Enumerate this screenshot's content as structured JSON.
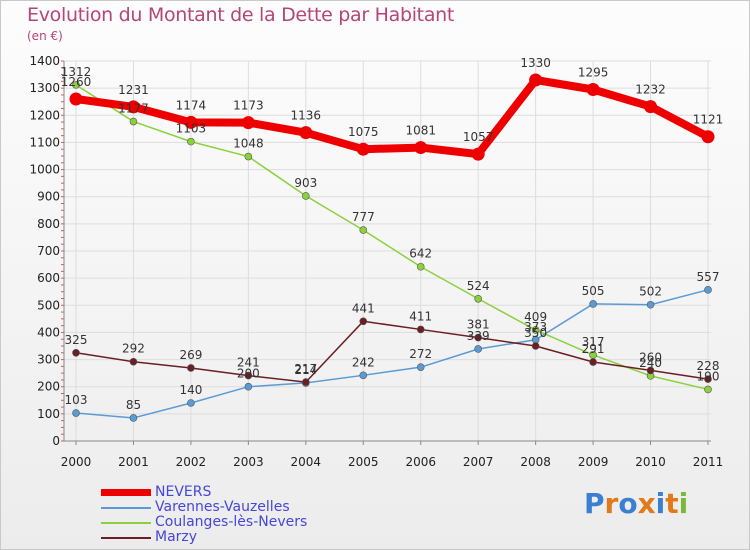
{
  "title": "Evolution du Montant de la Dette par Habitant",
  "unit": "(en €)",
  "logo": {
    "text": "Proxiti",
    "colors": [
      "#3b7fd0",
      "#e07a1c",
      "#3b7fd0",
      "#e07a1c",
      "#3b7fd0",
      "#e07a1c",
      "#7ab83a"
    ]
  },
  "chart_data": {
    "type": "line",
    "title": "Evolution du Montant de la Dette par Habitant",
    "ylabel": "(en €)",
    "xlabel": "",
    "x": [
      "2000",
      "2001",
      "2002",
      "2003",
      "2004",
      "2005",
      "2006",
      "2007",
      "2008",
      "2009",
      "2010",
      "2011"
    ],
    "ylim": [
      0,
      1400
    ],
    "yticks": [
      0,
      100,
      200,
      300,
      400,
      500,
      600,
      700,
      800,
      900,
      1000,
      1100,
      1200,
      1300,
      1400
    ],
    "grid": true,
    "legend": "bottom-left",
    "series": [
      {
        "name": "NEVERS",
        "color": "#ee0000",
        "values": [
          1260,
          1231,
          1174,
          1173,
          1136,
          1075,
          1081,
          1057,
          1330,
          1295,
          1232,
          1121
        ],
        "labels": [
          "1260",
          "1231",
          "1174",
          "1173",
          "1136",
          "1075",
          "1081",
          "1057",
          "1330",
          "1295",
          "1232",
          "1121"
        ]
      },
      {
        "name": "Varennes-Vauzelles",
        "color": "#5b9bd5",
        "values": [
          103,
          85,
          140,
          200,
          214,
          242,
          272,
          339,
          373,
          505,
          502,
          557
        ],
        "labels": [
          "103",
          "85",
          "140",
          "200",
          "214",
          "242",
          "272",
          "339",
          "373",
          "505",
          "502",
          "557"
        ]
      },
      {
        "name": "Coulanges-lès-Nevers",
        "color": "#8bd13b",
        "values": [
          1312,
          1177,
          1103,
          1048,
          903,
          777,
          642,
          524,
          409,
          317,
          240,
          190
        ],
        "labels": [
          "1312",
          "1177",
          "1103",
          "1048",
          "903",
          "777",
          "642",
          "524",
          "409",
          "317",
          "240",
          "190"
        ]
      },
      {
        "name": "Marzy",
        "color": "#6b1e24",
        "values": [
          325,
          292,
          269,
          241,
          217,
          441,
          411,
          381,
          350,
          291,
          260,
          228
        ],
        "labels": [
          "325",
          "292",
          "269",
          "241",
          "217",
          "441",
          "411",
          "381",
          "350",
          "291",
          "260",
          "228"
        ]
      }
    ]
  }
}
